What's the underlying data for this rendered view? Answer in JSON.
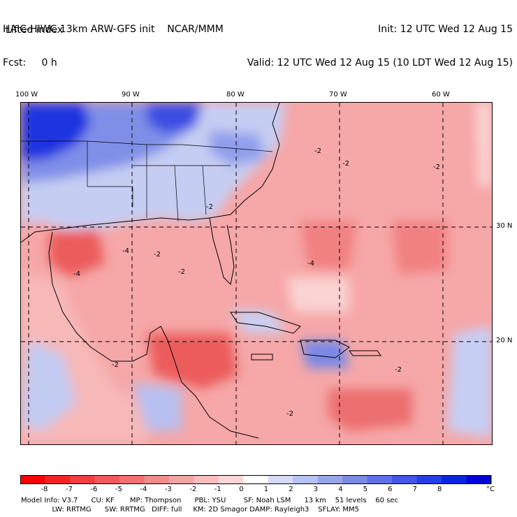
{
  "header": {
    "title_line": "HAIC-HIWC 13km ARW-GFS init    NCAR/MMM",
    "fcst_line": "Fcst:     0 h",
    "field": "Lifted index",
    "init_line": "Init: 12 UTC Wed 12 Aug 15",
    "valid_line": "Valid: 12 UTC Wed 12 Aug 15 (10 LDT Wed 12 Aug 15)"
  },
  "map": {
    "lon_labels": [
      "100 W",
      "90 W",
      "80 W",
      "70 W",
      "60 W"
    ],
    "lat_labels": [
      "30 N",
      "20 N"
    ],
    "contour_labels": [
      "-2",
      "-2",
      "-2",
      "-2",
      "-2",
      "-4",
      "-4",
      "-4",
      "-2",
      "-2",
      "-2",
      "-2"
    ],
    "colors": {
      "ocean_warm": "#f6a7a7",
      "ocean_mid": "#f28888",
      "ocean_strong": "#ec5c5c",
      "pale": "#fbd3d3",
      "land_cool": "#c6cdf3",
      "land_blue": "#7f8fe8",
      "deep_blue": "#1f35e0"
    }
  },
  "colorbar": {
    "labels": [
      "-8",
      "-7",
      "-6",
      "-5",
      "-4",
      "-3",
      "-2",
      "-1",
      "0",
      "1",
      "2",
      "3",
      "4",
      "5",
      "6",
      "7",
      "8"
    ],
    "unit": "°C",
    "colors": [
      "#ff0000",
      "#f42424",
      "#ef3f3f",
      "#f05a5a",
      "#f27272",
      "#f48a8a",
      "#f7a3a3",
      "#fabcbc",
      "#fcd6d6",
      "#ffffff",
      "#d6dbf8",
      "#b8c1f3",
      "#99a5ef",
      "#7b8aeb",
      "#5e70e8",
      "#4257e5",
      "#253fe2",
      "#0a26dd",
      "#0000d9"
    ]
  },
  "footer": {
    "line1": "Model Info: V3.7      CU: KF       MP: Thompson      PBL: YSU        SF: Noah LSM      13 km    51 levels    60 sec",
    "line2": "              LW: RRTMG      SW: RRTMG   DIFF: full     KM: 2D Smagor DAMP: Rayleigh3    SFLAY: MM5"
  }
}
